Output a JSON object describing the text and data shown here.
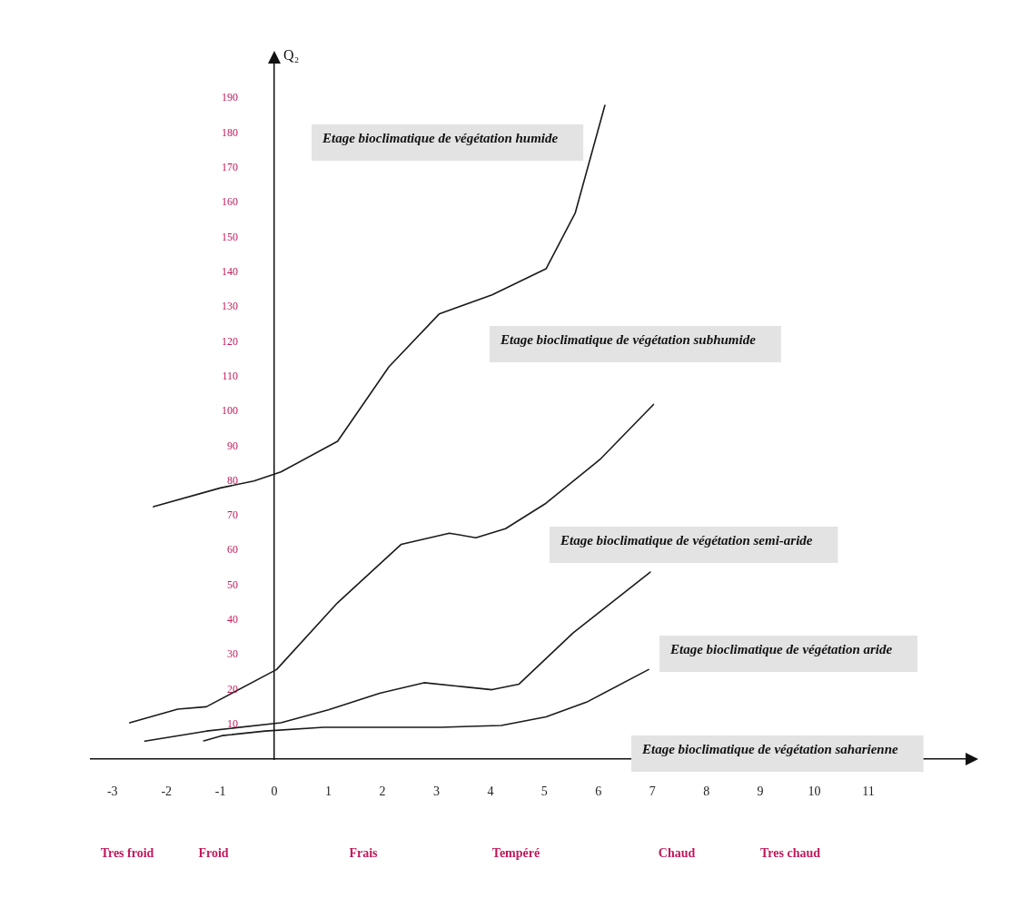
{
  "chart_data": {
    "type": "line",
    "ylabel": "Q₂",
    "xlim": [
      -3.4,
      12.8
    ],
    "ylim": [
      0,
      200
    ],
    "xticks": [
      -3,
      -2,
      -1,
      0,
      1,
      2,
      3,
      4,
      5,
      6,
      7,
      8,
      9,
      10,
      11
    ],
    "yticks": [
      10,
      20,
      30,
      40,
      50,
      60,
      70,
      80,
      90,
      100,
      110,
      120,
      130,
      140,
      150,
      160,
      170,
      180,
      190
    ],
    "legend": false,
    "marker": "none",
    "line_style": "solid",
    "series": [
      {
        "color": "#1a1a1a",
        "x": [
          -2.24,
          -1,
          -0.38,
          0.12,
          1.17,
          2.12,
          3.05,
          4.03,
          5.03,
          5.57,
          6.12
        ],
        "values": [
          72.6,
          78,
          80,
          82.6,
          91.4,
          112.8,
          128,
          133.5,
          141,
          157,
          188
        ]
      },
      {
        "color": "#1a1a1a",
        "x": [
          -2.68,
          -1.79,
          -1.26,
          0.04,
          1.17,
          2.35,
          3.24,
          3.73,
          4.28,
          5.03,
          6.03,
          7.02
        ],
        "values": [
          10.5,
          14.4,
          15.1,
          25.8,
          45,
          61.8,
          65,
          63.7,
          66.3,
          73.6,
          86.2,
          102
        ]
      },
      {
        "color": "#1a1a1a",
        "x": [
          -2.4,
          -1.26,
          0.12,
          1,
          1.95,
          2.77,
          3.4,
          4.03,
          4.53,
          5.53,
          6.96
        ],
        "values": [
          5.2,
          8.1,
          10.5,
          14.2,
          19,
          22,
          21,
          20,
          21.6,
          36.3,
          53.8
        ]
      },
      {
        "color": "#1a1a1a",
        "x": [
          -1.31,
          -0.97,
          -0.17,
          0.91,
          2.12,
          3.08,
          4.2,
          5.03,
          5.78,
          6.93
        ],
        "values": [
          5.3,
          6.8,
          8.1,
          9.2,
          9.2,
          9.2,
          9.7,
          12.2,
          16.4,
          25.8
        ]
      }
    ],
    "annotations": [
      "Etage bioclimatique de végétation humide",
      "Etage bioclimatique de végétation subhumide",
      "Etage bioclimatique de végétation semi-aride",
      "Etage bioclimatique de végétation aride",
      "Etage bioclimatique de végétation saharienne",
      "Tres froid",
      "Froid",
      "Frais",
      "Tempéré",
      "Chaud",
      "Tres chaud"
    ]
  }
}
